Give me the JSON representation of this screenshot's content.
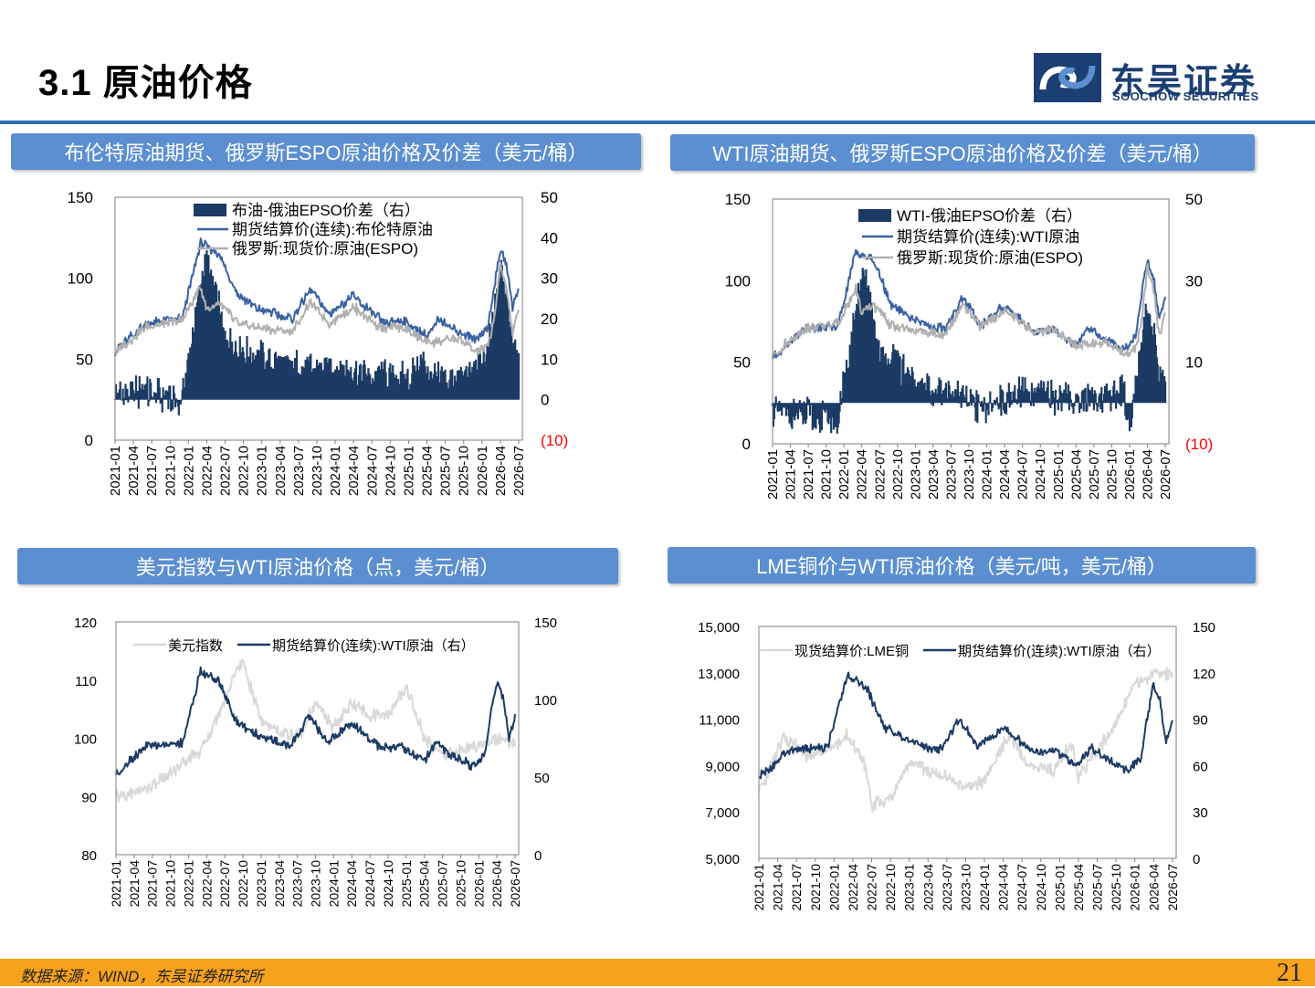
{
  "header": {
    "slide_title": "3.1 原油价格",
    "logo_cn": "东吴证券",
    "logo_en": "SOOCHOW SECURITIES"
  },
  "colors": {
    "dark": "#1b3a64",
    "mid": "#3a62a0",
    "gray": "#b0b0b0",
    "light": "#d9d9d9",
    "red": "#ff0000",
    "title_bg": "#5b8fd1",
    "footer": "#f7a21b"
  },
  "footer": {
    "source": "数据来源：WIND，东吴证券研究所",
    "page": "21"
  },
  "x_ticks": [
    "2021-01",
    "2021-04",
    "2021-07",
    "2021-10",
    "2022-01",
    "2022-04",
    "2022-07",
    "2022-10",
    "2023-01",
    "2023-04",
    "2023-07",
    "2023-10",
    "2024-01",
    "2024-04",
    "2024-07",
    "2024-10",
    "2025-01",
    "2025-04",
    "2025-07",
    "2025-10",
    "2026-01",
    "2026-04",
    "2026-07"
  ],
  "panels": [
    {
      "title": "布伦特原油期货、俄罗斯ESPO原油价格及价差（美元/桶）"
    },
    {
      "title": "WTI原油期货、俄罗斯ESPO原油价格及价差（美元/桶）"
    },
    {
      "title": "美元指数与WTI原油价格（点，美元/桶）"
    },
    {
      "title": "LME铜价与WTI原油价格（美元/吨，美元/桶）"
    }
  ],
  "chart_data": [
    {
      "type": "line",
      "left_axis": {
        "range": [
          0,
          150
        ],
        "ticks": [
          "0",
          "50",
          "100",
          "150"
        ]
      },
      "right_axis": {
        "range": [
          -10,
          50
        ],
        "ticks": [
          "(10)",
          "0",
          "10",
          "20",
          "30",
          "40",
          "50"
        ]
      },
      "series": [
        {
          "name": "布油-俄油EPSO价差（右）",
          "kind": "area",
          "axis": "right",
          "x": [
            "2021-01",
            "2021-06",
            "2021-12",
            "2022-03",
            "2022-04",
            "2022-05",
            "2022-07",
            "2022-10",
            "2023-01",
            "2023-06",
            "2024-01",
            "2024-06",
            "2025-01",
            "2025-03",
            "2025-06",
            "2025-09",
            "2025-12",
            "2026-01",
            "2026-02",
            "2026-03",
            "2026-04",
            "2026-05",
            "2026-06",
            "2026-07"
          ],
          "values": [
            1,
            2,
            0,
            28,
            34,
            30,
            15,
            12,
            10,
            8,
            8,
            6,
            5,
            9,
            5,
            5,
            8,
            9,
            11,
            22,
            31,
            26,
            16,
            12
          ]
        },
        {
          "name": "期货结算价(连续):布伦特原油",
          "kind": "line",
          "axis": "left",
          "x": [
            "2021-01",
            "2021-06",
            "2021-12",
            "2022-03",
            "2022-06",
            "2022-09",
            "2022-12",
            "2023-03",
            "2023-06",
            "2023-09",
            "2023-12",
            "2024-04",
            "2024-09",
            "2024-12",
            "2025-04",
            "2025-06",
            "2025-09",
            "2025-12",
            "2026-02",
            "2026-03",
            "2026-04",
            "2026-05",
            "2026-06",
            "2026-07"
          ],
          "values": [
            55,
            72,
            75,
            122,
            115,
            90,
            82,
            78,
            75,
            93,
            78,
            89,
            72,
            74,
            64,
            75,
            67,
            62,
            70,
            95,
            118,
            108,
            82,
            95
          ]
        },
        {
          "name": "俄罗斯:现货价:原油(ESPO)",
          "kind": "line",
          "axis": "left",
          "x": [
            "2021-01",
            "2021-06",
            "2021-12",
            "2022-03",
            "2022-04",
            "2022-06",
            "2022-09",
            "2022-12",
            "2023-03",
            "2023-06",
            "2023-09",
            "2023-12",
            "2024-04",
            "2024-09",
            "2024-12",
            "2025-04",
            "2025-09",
            "2025-12",
            "2026-02",
            "2026-03",
            "2026-04",
            "2026-05",
            "2026-06",
            "2026-07"
          ],
          "values": [
            54,
            70,
            74,
            95,
            80,
            85,
            72,
            70,
            68,
            67,
            85,
            72,
            82,
            68,
            70,
            60,
            63,
            55,
            58,
            75,
            108,
            95,
            66,
            80
          ]
        }
      ]
    },
    {
      "type": "line",
      "left_axis": {
        "range": [
          0,
          150
        ],
        "ticks": [
          "0",
          "50",
          "100",
          "150"
        ]
      },
      "right_axis": {
        "range": [
          -10,
          50
        ],
        "ticks": [
          "(10)",
          "10",
          "30",
          "50"
        ]
      },
      "series": [
        {
          "name": "WTI-俄油EPSO价差（右）",
          "kind": "area",
          "axis": "right",
          "x": [
            "2021-01",
            "2021-06",
            "2021-12",
            "2022-03",
            "2022-04",
            "2022-05",
            "2022-07",
            "2022-10",
            "2023-01",
            "2023-06",
            "2024-01",
            "2024-06",
            "2025-01",
            "2025-06",
            "2025-12",
            "2026-01",
            "2026-02",
            "2026-03",
            "2026-04",
            "2026-05",
            "2026-06",
            "2026-07"
          ],
          "values": [
            -2,
            -3,
            -4,
            22,
            30,
            28,
            12,
            10,
            4,
            3,
            -1,
            2,
            1,
            1,
            3,
            -5,
            5,
            15,
            22,
            16,
            8,
            6
          ]
        },
        {
          "name": "期货结算价(连续):WTI原油",
          "kind": "line",
          "axis": "left",
          "x": [
            "2021-01",
            "2021-06",
            "2021-12",
            "2022-03",
            "2022-06",
            "2022-09",
            "2022-12",
            "2023-03",
            "2023-06",
            "2023-09",
            "2023-12",
            "2024-04",
            "2024-09",
            "2024-12",
            "2025-04",
            "2025-06",
            "2025-09",
            "2025-12",
            "2026-02",
            "2026-03",
            "2026-04",
            "2026-05",
            "2026-06",
            "2026-07"
          ],
          "values": [
            52,
            70,
            72,
            118,
            112,
            85,
            78,
            73,
            70,
            90,
            72,
            85,
            68,
            70,
            60,
            72,
            63,
            57,
            65,
            92,
            112,
            102,
            75,
            90
          ]
        },
        {
          "name": "俄罗斯:现货价:原油(ESPO)",
          "kind": "line",
          "axis": "left",
          "x": [
            "2021-01",
            "2021-06",
            "2021-12",
            "2022-03",
            "2022-04",
            "2022-06",
            "2022-09",
            "2022-12",
            "2023-03",
            "2023-06",
            "2023-09",
            "2023-12",
            "2024-04",
            "2024-09",
            "2024-12",
            "2025-04",
            "2025-09",
            "2025-12",
            "2026-02",
            "2026-03",
            "2026-04",
            "2026-05",
            "2026-06",
            "2026-07"
          ],
          "values": [
            54,
            70,
            74,
            95,
            80,
            85,
            72,
            70,
            68,
            67,
            85,
            72,
            82,
            68,
            70,
            60,
            63,
            55,
            58,
            75,
            108,
            95,
            66,
            80
          ]
        }
      ]
    },
    {
      "type": "line",
      "left_axis": {
        "range": [
          80,
          120
        ],
        "ticks": [
          "80",
          "90",
          "100",
          "110",
          "120"
        ]
      },
      "right_axis": {
        "range": [
          0,
          150
        ],
        "ticks": [
          "0",
          "50",
          "100",
          "150"
        ]
      },
      "series": [
        {
          "name": "美元指数",
          "kind": "line",
          "axis": "left",
          "x": [
            "2021-01",
            "2021-05",
            "2021-09",
            "2021-12",
            "2022-03",
            "2022-06",
            "2022-09",
            "2022-10",
            "2023-01",
            "2023-04",
            "2023-07",
            "2023-10",
            "2024-01",
            "2024-04",
            "2024-07",
            "2024-10",
            "2025-01",
            "2025-04",
            "2025-07",
            "2025-10",
            "2026-01",
            "2026-04",
            "2026-07"
          ],
          "values": [
            90,
            91,
            93,
            96,
            98,
            104,
            112,
            113,
            103,
            101,
            100,
            106,
            102,
            106,
            104,
            104,
            109,
            100,
            97,
            98,
            99,
            100,
            99
          ]
        },
        {
          "name": "期货结算价(连续):WTI原油（右）",
          "kind": "line",
          "axis": "right",
          "x": [
            "2021-01",
            "2021-06",
            "2021-12",
            "2022-03",
            "2022-06",
            "2022-09",
            "2022-12",
            "2023-03",
            "2023-06",
            "2023-09",
            "2023-12",
            "2024-04",
            "2024-09",
            "2024-12",
            "2025-04",
            "2025-06",
            "2025-09",
            "2025-12",
            "2026-02",
            "2026-03",
            "2026-04",
            "2026-05",
            "2026-06",
            "2026-07"
          ],
          "values": [
            52,
            70,
            72,
            118,
            112,
            85,
            78,
            73,
            70,
            90,
            72,
            85,
            68,
            70,
            60,
            72,
            63,
            57,
            65,
            92,
            112,
            102,
            75,
            90
          ]
        }
      ]
    },
    {
      "type": "line",
      "left_axis": {
        "range": [
          5000,
          15000
        ],
        "ticks": [
          "5,000",
          "7,000",
          "9,000",
          "11,000",
          "13,000",
          "15,000"
        ]
      },
      "right_axis": {
        "range": [
          0,
          150
        ],
        "ticks": [
          "0",
          "30",
          "60",
          "90",
          "120",
          "150"
        ]
      },
      "series": [
        {
          "name": "现货结算价:LME铜",
          "kind": "line",
          "axis": "left",
          "x": [
            "2021-01",
            "2021-05",
            "2021-09",
            "2021-12",
            "2022-03",
            "2022-06",
            "2022-07",
            "2022-10",
            "2023-01",
            "2023-04",
            "2023-07",
            "2023-10",
            "2024-01",
            "2024-05",
            "2024-08",
            "2024-12",
            "2025-03",
            "2025-04",
            "2025-07",
            "2025-10",
            "2026-01",
            "2026-04",
            "2026-07"
          ],
          "values": [
            7800,
            10200,
            9400,
            9700,
            10300,
            9000,
            7300,
            7600,
            9200,
            8800,
            8500,
            8000,
            8400,
            10300,
            9000,
            8800,
            9900,
            8500,
            9700,
            10800,
            12500,
            13000,
            12900
          ]
        },
        {
          "name": "期货结算价(连续):WTI原油（右）",
          "kind": "line",
          "axis": "right",
          "x": [
            "2021-01",
            "2021-06",
            "2021-12",
            "2022-03",
            "2022-06",
            "2022-09",
            "2022-12",
            "2023-03",
            "2023-06",
            "2023-09",
            "2023-12",
            "2024-04",
            "2024-09",
            "2024-12",
            "2025-04",
            "2025-06",
            "2025-09",
            "2025-12",
            "2026-02",
            "2026-03",
            "2026-04",
            "2026-05",
            "2026-06",
            "2026-07"
          ],
          "values": [
            52,
            70,
            72,
            118,
            112,
            85,
            78,
            73,
            70,
            90,
            72,
            85,
            68,
            70,
            60,
            72,
            63,
            57,
            65,
            92,
            112,
            102,
            75,
            90
          ]
        }
      ]
    }
  ]
}
